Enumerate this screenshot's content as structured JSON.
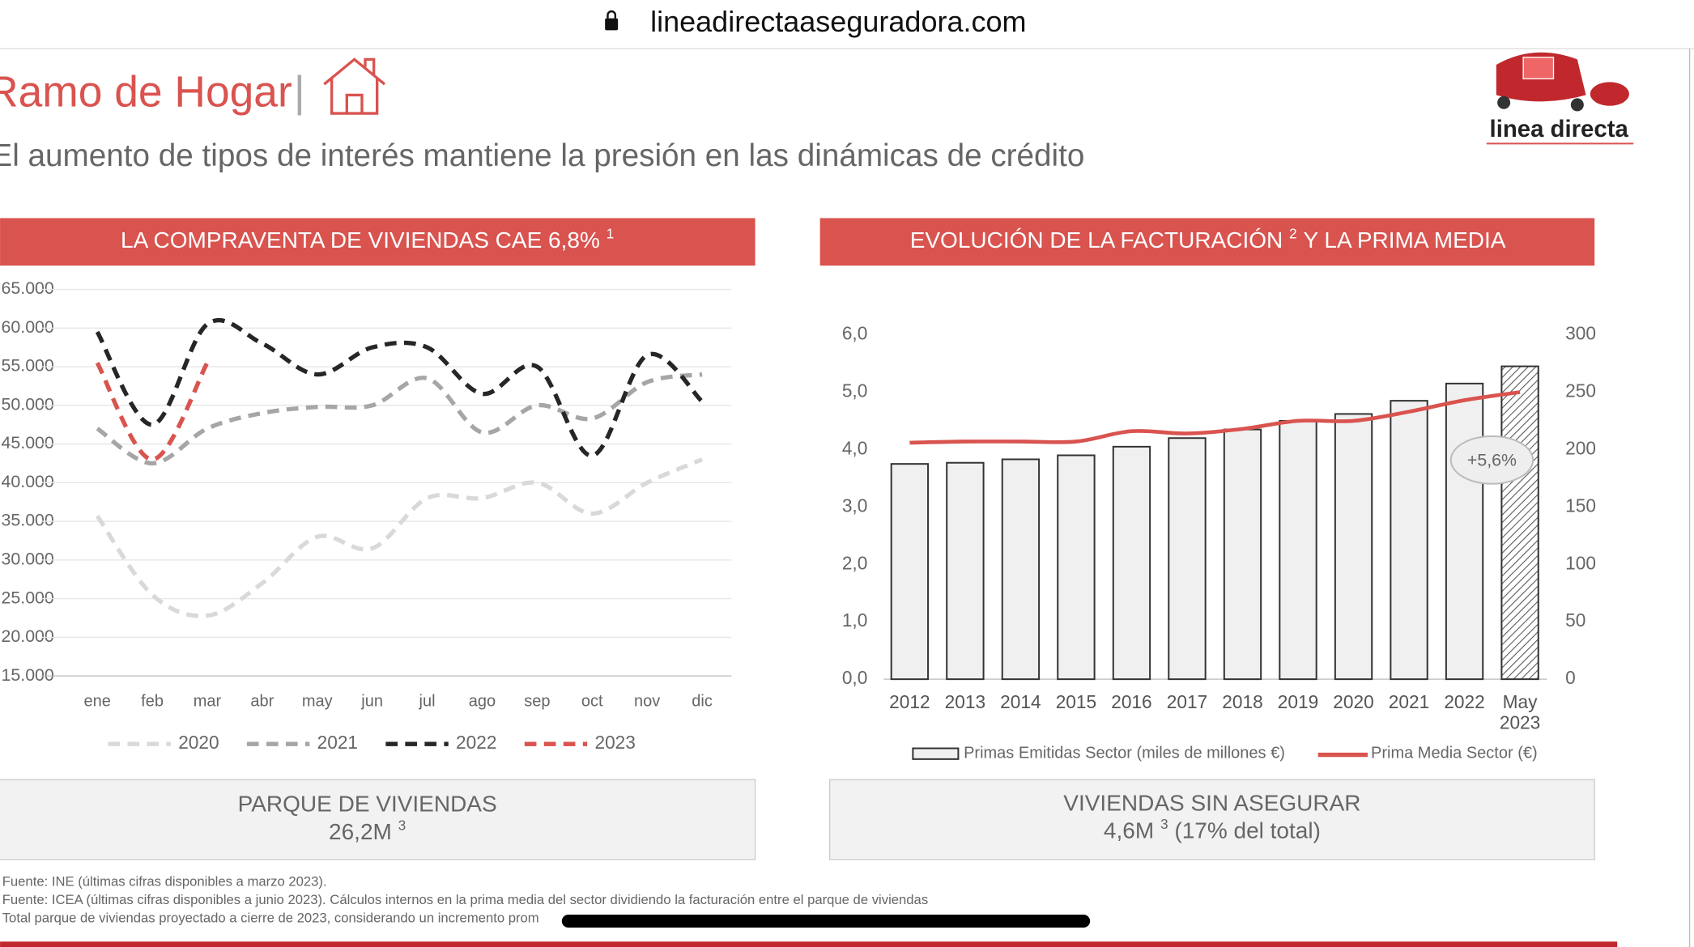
{
  "browser": {
    "url": "lineadirectaaseguradora.com"
  },
  "header": {
    "title": "Ramo de Hogar",
    "subtitle": "El aumento de tipos de interés mantiene la presión en las dinámicas de crédito",
    "logo": "linea directa"
  },
  "chart_data": [
    {
      "type": "line",
      "title": "LA COMPRAVENTA DE VIVIENDAS CAE 6,8%",
      "title_note": "1",
      "smooth": true,
      "dashed": true,
      "categories": [
        "ene",
        "feb",
        "mar",
        "abr",
        "may",
        "jun",
        "jul",
        "ago",
        "sep",
        "oct",
        "nov",
        "dic"
      ],
      "ylim": [
        15000,
        65000
      ],
      "yticks": [
        {
          "value": 15000,
          "label": "15.000"
        },
        {
          "value": 20000,
          "label": "20.000"
        },
        {
          "value": 25000,
          "label": "25.000"
        },
        {
          "value": 30000,
          "label": "30.000"
        },
        {
          "value": 35000,
          "label": "35.000"
        },
        {
          "value": 40000,
          "label": "40.000"
        },
        {
          "value": 45000,
          "label": "45.000"
        },
        {
          "value": 50000,
          "label": "50.000"
        },
        {
          "value": 55000,
          "label": "55.000"
        },
        {
          "value": 60000,
          "label": "60.000"
        },
        {
          "value": 65000,
          "label": "65.000"
        }
      ],
      "grid": true,
      "legend": "bottom",
      "series": [
        {
          "name": "2020",
          "color": "#d9d9d9",
          "values": [
            35700,
            25500,
            22800,
            27000,
            33000,
            31500,
            38000,
            38000,
            40000,
            36000,
            40000,
            43000
          ]
        },
        {
          "name": "2021",
          "color": "#a6a6a6",
          "values": [
            47000,
            42500,
            47000,
            49000,
            49800,
            50000,
            53500,
            46500,
            50000,
            48300,
            53000,
            54000
          ]
        },
        {
          "name": "2022",
          "color": "#262626",
          "values": [
            59500,
            47500,
            60500,
            58000,
            54000,
            57500,
            57500,
            51500,
            55000,
            43500,
            56500,
            50500
          ]
        },
        {
          "name": "2023",
          "color": "#d9534f",
          "values": [
            55500,
            43000,
            55500,
            null,
            null,
            null,
            null,
            null,
            null,
            null,
            null,
            null
          ]
        }
      ]
    },
    {
      "type": "bar",
      "title": "EVOLUCIÓN DE LA FACTURACIÓN",
      "title_note": "2",
      "title_end": "Y LA PRIMA MEDIA",
      "categories": [
        "2012",
        "2013",
        "2014",
        "2015",
        "2016",
        "2017",
        "2018",
        "2019",
        "2020",
        "2021",
        "2022",
        "May 2023"
      ],
      "ylim": [
        0,
        6
      ],
      "yticks": [
        {
          "value": 0,
          "label": "0,0"
        },
        {
          "value": 1,
          "label": "1,0"
        },
        {
          "value": 2,
          "label": "2,0"
        },
        {
          "value": 3,
          "label": "3,0"
        },
        {
          "value": 4,
          "label": "4,0"
        },
        {
          "value": 5,
          "label": "5,0"
        },
        {
          "value": 6,
          "label": "6,0"
        }
      ],
      "y2lim": [
        0,
        300
      ],
      "y2ticks": [
        0,
        50,
        100,
        150,
        200,
        250,
        300
      ],
      "legend": "bottom",
      "series": [
        {
          "name": "Primas Emitidas Sector (miles de millones €)",
          "color": "#f0f0f0",
          "values": [
            3.75,
            3.77,
            3.83,
            3.9,
            4.05,
            4.2,
            4.35,
            4.5,
            4.62,
            4.85,
            5.15,
            5.45
          ]
        },
        {
          "name": "Prima Media Sector (€)",
          "type": "line",
          "axis": "y2",
          "color": "#d9534f",
          "values": [
            206,
            207,
            207,
            207,
            216,
            214,
            218,
            225,
            225,
            233,
            243,
            250
          ]
        }
      ],
      "annotation": "+5,6%"
    }
  ],
  "boxes": [
    {
      "label": "PARQUE DE VIVIENDAS",
      "value": "26,2M",
      "note": "3"
    },
    {
      "label": "VIVIENDAS SIN ASEGURAR",
      "value": "4,6M",
      "note": "3",
      "detail": "(17% del total)"
    }
  ],
  "footnotes": [
    "Fuente: INE (últimas cifras disponibles a marzo 2023).",
    "Fuente: ICEA (últimas cifras disponibles a junio 2023). Cálculos internos en la prima media del sector dividiendo la facturación entre el parque de viviendas",
    "Total parque de viviendas proyectado a cierre de 2023, considerando un incremento prom"
  ]
}
